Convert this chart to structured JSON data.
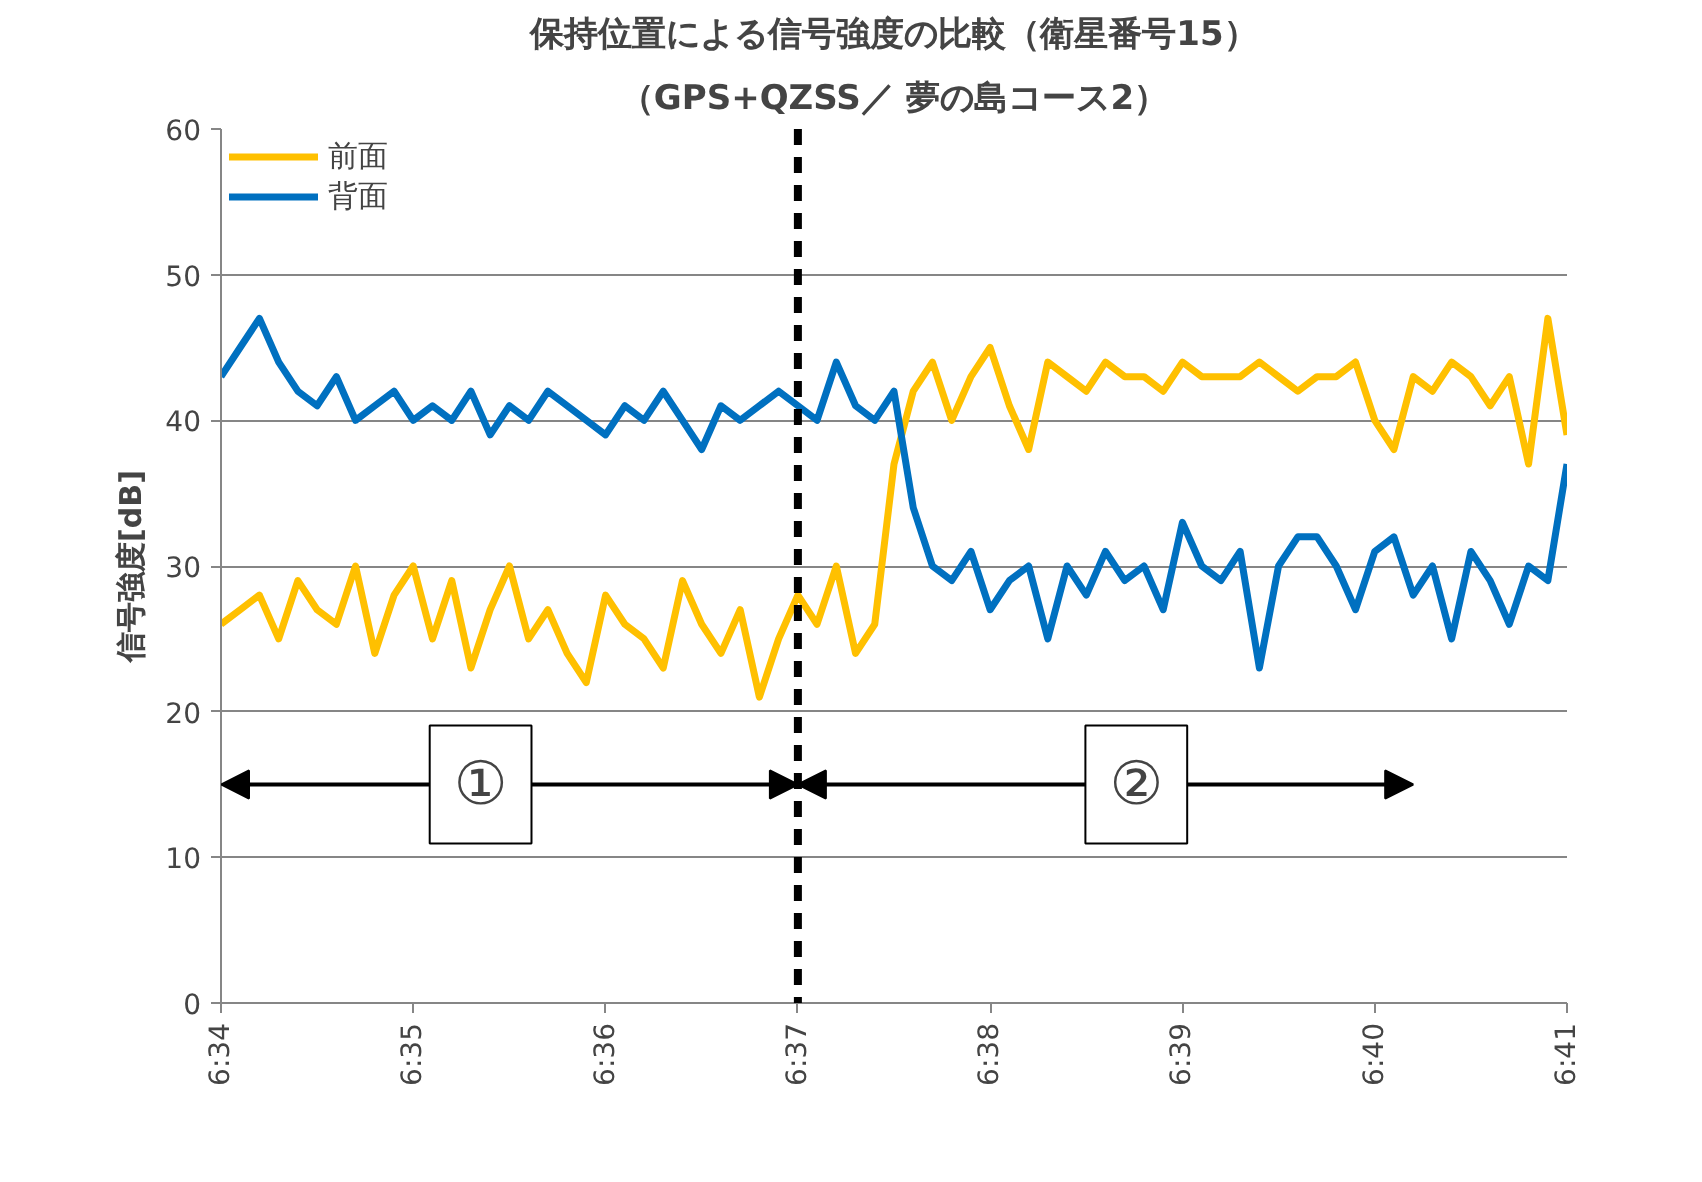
{
  "chart_data": {
    "type": "line",
    "title": "保持位置による信号強度の比較（衛星番号15）",
    "subtitle": "（GPS+QZSS／ 夢の島コース2）",
    "ylabel": "信号強度[dB]",
    "x": [
      6.56667,
      6.56833,
      6.57,
      6.57167,
      6.57333,
      6.575,
      6.57667,
      6.57833,
      6.58,
      6.58167,
      6.58333,
      6.585,
      6.58667,
      6.58833,
      6.59,
      6.59167,
      6.59333,
      6.595,
      6.59667,
      6.59833,
      6.6,
      6.60167,
      6.60333,
      6.605,
      6.60667,
      6.60833,
      6.61,
      6.61167,
      6.61333,
      6.615,
      6.61667,
      6.61833,
      6.62,
      6.62167,
      6.62333,
      6.625,
      6.62667,
      6.62833,
      6.63,
      6.63167,
      6.63333,
      6.635,
      6.63667,
      6.63833,
      6.64,
      6.64167,
      6.64333,
      6.645,
      6.64667,
      6.64833,
      6.65,
      6.65167,
      6.65333,
      6.655,
      6.65667,
      6.65833,
      6.66,
      6.66167,
      6.66333,
      6.665,
      6.66667,
      6.66833,
      6.67,
      6.67167,
      6.67333,
      6.675,
      6.67667,
      6.67833,
      6.68,
      6.68167,
      6.68333
    ],
    "series": [
      {
        "name": "前面",
        "color": "#ffc000",
        "values": [
          26,
          27,
          28,
          25,
          29,
          27,
          26,
          30,
          24,
          28,
          30,
          25,
          29,
          23,
          27,
          30,
          25,
          27,
          24,
          22,
          28,
          26,
          25,
          23,
          29,
          26,
          24,
          27,
          21,
          25,
          28,
          26,
          30,
          24,
          26,
          37,
          42,
          44,
          40,
          43,
          45,
          41,
          38,
          44,
          43,
          42,
          44,
          43,
          43,
          42,
          44,
          43,
          43,
          43,
          44,
          43,
          42,
          43,
          43,
          44,
          40,
          38,
          43,
          42,
          44,
          43,
          41,
          43,
          37,
          47,
          39
        ]
      },
      {
        "name": "背面",
        "color": "#0070c0",
        "values": [
          43,
          45,
          47,
          44,
          42,
          41,
          43,
          40,
          41,
          42,
          40,
          41,
          40,
          42,
          39,
          41,
          40,
          42,
          41,
          40,
          39,
          41,
          40,
          42,
          40,
          38,
          41,
          40,
          41,
          42,
          41,
          40,
          44,
          41,
          40,
          42,
          34,
          30,
          29,
          31,
          27,
          29,
          30,
          25,
          30,
          28,
          31,
          29,
          30,
          27,
          33,
          30,
          29,
          31,
          23,
          30,
          32,
          32,
          30,
          27,
          31,
          32,
          28,
          30,
          25,
          31,
          29,
          26,
          30,
          29,
          37
        ]
      }
    ],
    "xlim": [
      6.56667,
      6.68333
    ],
    "xticks": [
      {
        "value": 6.56667,
        "label": "6:34"
      },
      {
        "value": 6.58333,
        "label": "6:35"
      },
      {
        "value": 6.6,
        "label": "6:36"
      },
      {
        "value": 6.61667,
        "label": "6:37"
      },
      {
        "value": 6.63333,
        "label": "6:38"
      },
      {
        "value": 6.65,
        "label": "6:39"
      },
      {
        "value": 6.66667,
        "label": "6:40"
      },
      {
        "value": 6.68333,
        "label": "6:41"
      }
    ],
    "ylim": [
      0,
      60
    ],
    "yticks": [
      0,
      10,
      20,
      30,
      40,
      50,
      60
    ],
    "grid": "y",
    "legend": "top left",
    "marker": "none",
    "line_style": "solid",
    "ref_lines": [
      {
        "axis": "x",
        "value": 6.61667,
        "color": "#000000",
        "line_style": "dashed"
      }
    ],
    "annotations": [
      {
        "text": "①",
        "x": 6.61667,
        "y": 15
      },
      {
        "text": "②",
        "x": 6.61667,
        "y": 15
      }
    ]
  }
}
